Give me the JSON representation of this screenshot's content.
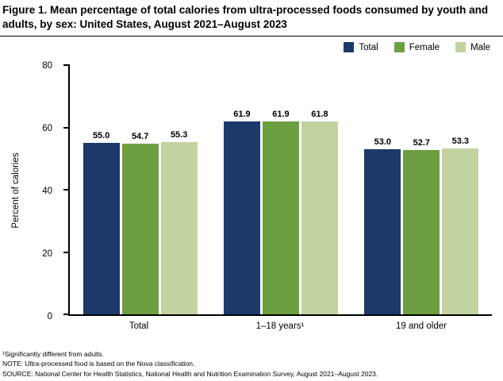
{
  "title": "Figure 1. Mean percentage of total calories from ultra-processed foods consumed by youth and adults, by sex: United States, August 2021–August 2023",
  "chart_data": {
    "type": "bar",
    "title": "Mean percentage of total calories from ultra-processed foods consumed by youth and adults, by sex: United States, August 2021–August 2023",
    "categories": [
      "Total",
      "1–18 years¹",
      "19 and older"
    ],
    "series": [
      {
        "name": "Total",
        "color": "#1b3a6b",
        "values": [
          55.0,
          61.9,
          53.0
        ]
      },
      {
        "name": "Female",
        "color": "#6d9e40",
        "values": [
          54.7,
          61.9,
          52.7
        ]
      },
      {
        "name": "Male",
        "color": "#c1d3a0",
        "values": [
          55.3,
          61.8,
          53.3
        ]
      }
    ],
    "xlabel": "",
    "ylabel": "Percent of calories",
    "ylim": [
      0,
      80
    ],
    "yticks": [
      0,
      20,
      40,
      60,
      80
    ],
    "grid": false,
    "legend_position": "top-right",
    "value_labels_decimals": 1
  },
  "footnotes": [
    "¹Significantly different from adults.",
    "NOTE: Ultra-processed food is based on the Nova classification.",
    "SOURCE: National Center for Health Statistics, National Health and Nutrition Examination Survey, August 2021–August 2023."
  ]
}
